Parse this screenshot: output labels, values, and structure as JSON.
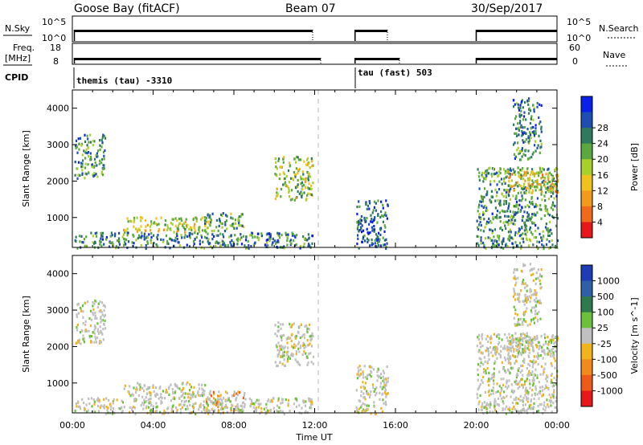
{
  "header": {
    "station": "Goose Bay (fitACF)",
    "beam": "Beam 07",
    "date": "30/Sep/2017"
  },
  "nsky_panel": {
    "label": "N.Sky",
    "left_ticks": [
      "10^5",
      "10^0"
    ],
    "right_ticks": [
      "10^5",
      "10^0"
    ],
    "right_label": "N.Search",
    "coverage_hours": [
      [
        0.1,
        11.9
      ],
      [
        14.0,
        15.6
      ],
      [
        20.0,
        24.0
      ]
    ]
  },
  "freq_panel": {
    "label": "Freq.",
    "unit": "[MHz]",
    "left_ticks": [
      "18",
      "8"
    ],
    "right_ticks": [
      "60",
      "0"
    ],
    "right_label": "Nave",
    "coverage_hours": [
      [
        0.1,
        12.3
      ],
      [
        14.0,
        16.2
      ],
      [
        20.0,
        24.0
      ]
    ]
  },
  "cpid": {
    "label": "CPID",
    "segments": [
      {
        "text": "themis (tau) -3310",
        "start_hour": 0.0
      },
      {
        "text": "tau (fast) 503",
        "start_hour": 14.0
      }
    ]
  },
  "chart_data": [
    {
      "type": "heatmap",
      "name": "power-panel",
      "xlabel": "",
      "ylabel": "Slant Range [km]",
      "xlim": [
        0,
        24
      ],
      "ylim": [
        180,
        4500
      ],
      "yticks": [
        1000,
        2000,
        3000,
        4000
      ],
      "colorbar": {
        "label": "Power [dB]",
        "ticks": [
          "4",
          "8",
          "12",
          "16",
          "20",
          "24",
          "28"
        ],
        "colors": [
          "#0a1fe8",
          "#1e4fb0",
          "#2e7a5e",
          "#5aa83e",
          "#a8d02a",
          "#f0c21e",
          "#f29a1c",
          "#ef6a1a",
          "#e8181a"
        ]
      },
      "regions": [
        {
          "x0": 0.1,
          "x1": 1.6,
          "y0": 2100,
          "y1": 3300,
          "level": 0.3
        },
        {
          "x0": 2.5,
          "x1": 6.8,
          "y0": 620,
          "y1": 1050,
          "level": 0.55
        },
        {
          "x0": 6.5,
          "x1": 8.5,
          "y0": 650,
          "y1": 1150,
          "level": 0.35
        },
        {
          "x0": 10.0,
          "x1": 11.9,
          "y0": 1500,
          "y1": 2700,
          "level": 0.45
        },
        {
          "x0": 0.1,
          "x1": 11.9,
          "y0": 180,
          "y1": 620,
          "level": 0.25
        },
        {
          "x0": 14.0,
          "x1": 15.6,
          "y0": 180,
          "y1": 1500,
          "level": 0.15
        },
        {
          "x0": 20.0,
          "x1": 24.0,
          "y0": 180,
          "y1": 2400,
          "level": 0.3
        },
        {
          "x0": 21.5,
          "x1": 24.0,
          "y0": 1700,
          "y1": 2300,
          "level": 0.6
        },
        {
          "x0": 21.8,
          "x1": 23.2,
          "y0": 2600,
          "y1": 4300,
          "level": 0.25
        }
      ]
    },
    {
      "type": "heatmap",
      "name": "velocity-panel",
      "xlabel": "Time UT",
      "ylabel": "Slant Range [km]",
      "xlim": [
        0,
        24
      ],
      "ylim": [
        180,
        4500
      ],
      "xticks": [
        "00:00",
        "04:00",
        "08:00",
        "12:00",
        "16:00",
        "20:00",
        "00:00"
      ],
      "yticks": [
        1000,
        2000,
        3000,
        4000
      ],
      "colorbar": {
        "label": "Velocity [m s^-1]",
        "ticks": [
          "1000",
          "500",
          "100",
          "25",
          "-25",
          "-100",
          "-500",
          "-1000"
        ],
        "colors": [
          "#1e3cb4",
          "#2f5fa6",
          "#2e7a4e",
          "#6cc03a",
          "#c0c0c0",
          "#f2b41c",
          "#f08a1c",
          "#ee5a1a",
          "#e8181a"
        ]
      },
      "regions": [
        {
          "x0": 0.1,
          "x1": 1.6,
          "y0": 2100,
          "y1": 3300,
          "level": 0.5
        },
        {
          "x0": 2.5,
          "x1": 6.8,
          "y0": 620,
          "y1": 1050,
          "level": 0.5
        },
        {
          "x0": 6.5,
          "x1": 8.5,
          "y0": 200,
          "y1": 800,
          "level": 0.7
        },
        {
          "x0": 10.0,
          "x1": 11.9,
          "y0": 1500,
          "y1": 2700,
          "level": 0.5
        },
        {
          "x0": 0.1,
          "x1": 11.9,
          "y0": 180,
          "y1": 620,
          "level": 0.45
        },
        {
          "x0": 14.0,
          "x1": 15.6,
          "y0": 180,
          "y1": 1500,
          "level": 0.55
        },
        {
          "x0": 20.0,
          "x1": 24.0,
          "y0": 180,
          "y1": 2400,
          "level": 0.5
        },
        {
          "x0": 21.5,
          "x1": 24.0,
          "y0": 1700,
          "y1": 2300,
          "level": 0.5
        },
        {
          "x0": 21.8,
          "x1": 23.2,
          "y0": 2600,
          "y1": 4300,
          "level": 0.5
        }
      ]
    }
  ]
}
